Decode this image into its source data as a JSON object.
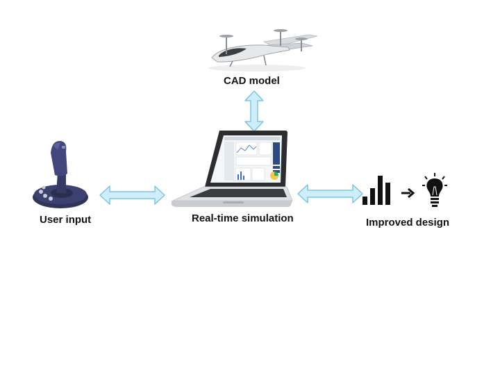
{
  "diagram": {
    "nodes": {
      "cad_model": {
        "label": "CAD model",
        "icon": "aircraft-icon"
      },
      "simulation": {
        "label": "Real-time simulation",
        "icon": "laptop-icon"
      },
      "user_input": {
        "label": "User input",
        "icon": "joystick-icon"
      },
      "improved_design": {
        "label": "Improved design",
        "icon": "chart-to-lightbulb-icon"
      }
    },
    "connections": [
      {
        "from": "cad_model",
        "to": "simulation",
        "type": "bidirectional"
      },
      {
        "from": "user_input",
        "to": "simulation",
        "type": "bidirectional"
      },
      {
        "from": "simulation",
        "to": "improved_design",
        "type": "bidirectional"
      }
    ],
    "colors": {
      "arrow_fill": "#cfeefb",
      "arrow_stroke": "#7fc3de",
      "text": "#111111"
    }
  }
}
